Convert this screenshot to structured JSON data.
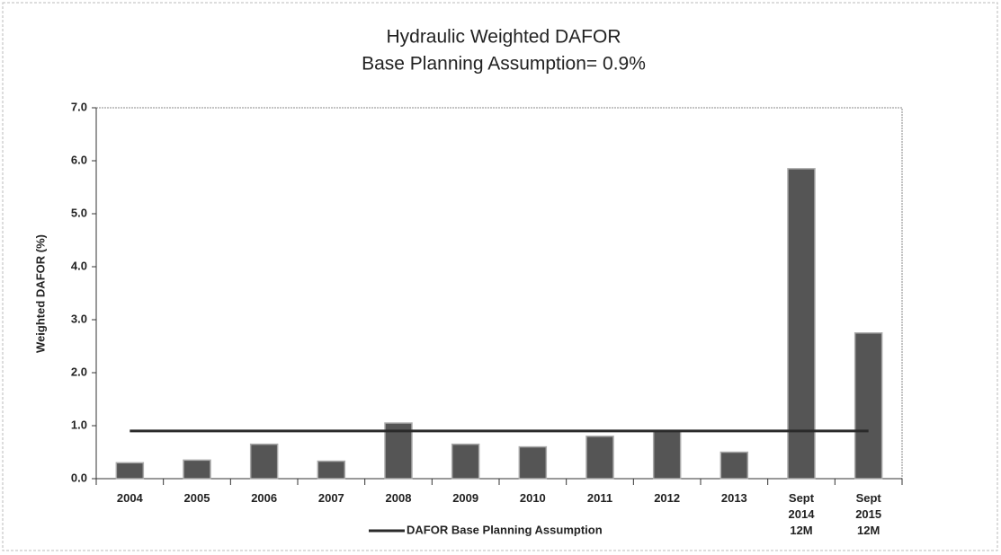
{
  "chart_data": {
    "type": "bar",
    "title": "Hydraulic Weighted DAFOR",
    "subtitle": "Base Planning Assumption= 0.9%",
    "y_label": "Weighted DAFOR (%)",
    "categories": [
      "2004",
      "2005",
      "2006",
      "2007",
      "2008",
      "2009",
      "2010",
      "2011",
      "2012",
      "2013",
      "Sept 2014 12M",
      "Sept 2015 12M"
    ],
    "series": [
      {
        "type": "bar",
        "color": "#555555",
        "values": [
          0.3,
          0.35,
          0.65,
          0.33,
          1.05,
          0.65,
          0.6,
          0.8,
          0.9,
          0.5,
          5.85,
          2.75
        ]
      },
      {
        "type": "line",
        "name": "DAFOR Base Planning Assumption",
        "color": "#2a2a2a",
        "values": [
          0.9,
          0.9,
          0.9,
          0.9,
          0.9,
          0.9,
          0.9,
          0.9,
          0.9,
          0.9,
          0.9,
          0.9
        ]
      }
    ],
    "ylim": [
      0,
      7
    ],
    "yticks": [
      {
        "value": 0,
        "label": "0.0"
      },
      {
        "value": 1,
        "label": "1.0"
      },
      {
        "value": 2,
        "label": "2.0"
      },
      {
        "value": 3,
        "label": "3.0"
      },
      {
        "value": 4,
        "label": "4.0"
      },
      {
        "value": 5,
        "label": "5.0"
      },
      {
        "value": 6,
        "label": "6.0"
      },
      {
        "value": 7,
        "label": "7.0"
      }
    ],
    "legend": "bottom"
  }
}
